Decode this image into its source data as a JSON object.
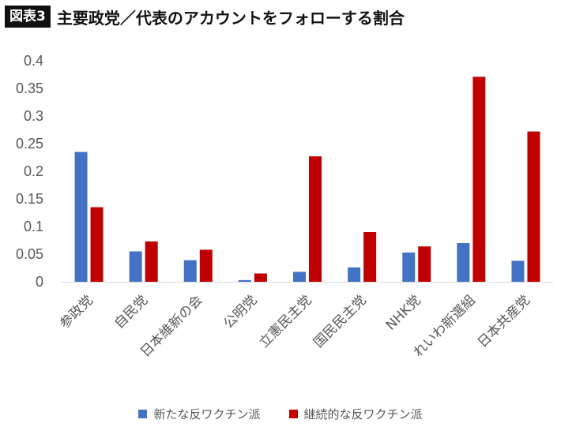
{
  "header": {
    "badge": "図表3",
    "title": "主要政党／代表のアカウントをフォローする割合"
  },
  "chart_data": {
    "type": "bar",
    "categories": [
      "参政党",
      "自民党",
      "日本維新の会",
      "公明党",
      "立憲民主党",
      "国民民主党",
      "NHK党",
      "れいわ新選組",
      "日本共産党"
    ],
    "series": [
      {
        "name": "新たな反ワクチン派",
        "color": "#4472C4",
        "values": [
          0.235,
          0.055,
          0.039,
          0.003,
          0.018,
          0.026,
          0.053,
          0.07,
          0.038
        ]
      },
      {
        "name": "継続的な反ワクチン派",
        "color": "#C00000",
        "values": [
          0.135,
          0.073,
          0.058,
          0.015,
          0.227,
          0.09,
          0.064,
          0.371,
          0.272
        ]
      }
    ],
    "yticks": [
      "0",
      "0.05",
      "0.1",
      "0.15",
      "0.2",
      "0.25",
      "0.3",
      "0.35",
      "0.4"
    ],
    "ylim": [
      0,
      0.4
    ],
    "legend_position": "bottom",
    "grid": false
  }
}
